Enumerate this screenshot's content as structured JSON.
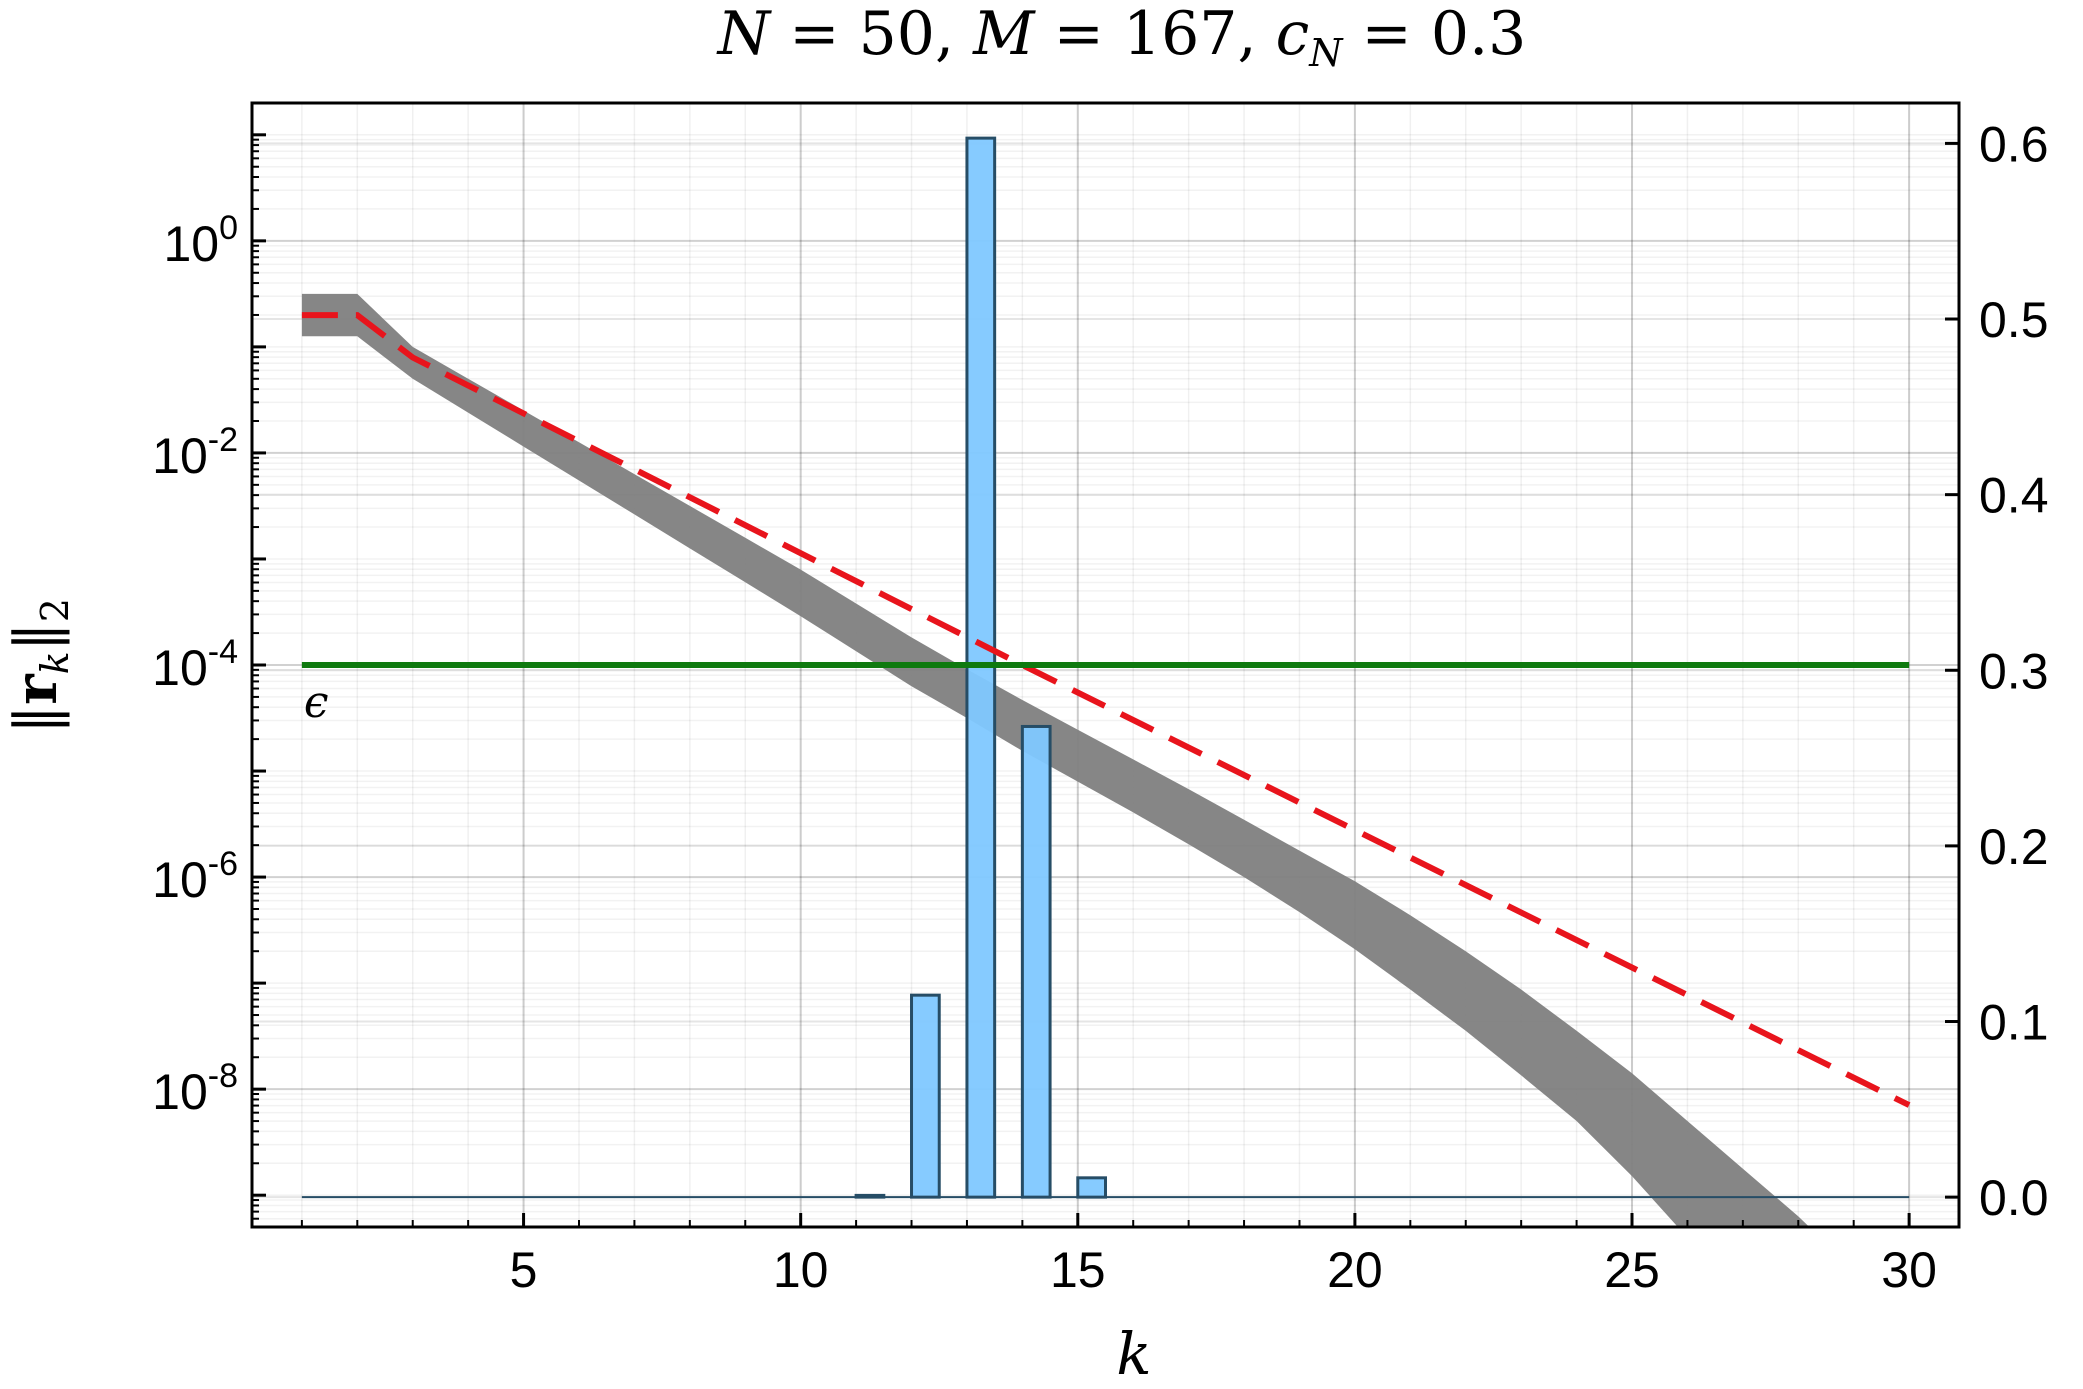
{
  "chart_data": {
    "type": "line+bar",
    "title": "N = 50, M = 167, c_N = 0.3",
    "title_parts": [
      "N",
      " = 50, ",
      "M",
      " = 167, ",
      "c",
      "N",
      " = 0.3"
    ],
    "xlabel": "k",
    "ylabel_left": "||r_k||_2",
    "ylabel_parts": [
      "‖",
      "r",
      "k",
      "‖",
      "2"
    ],
    "x_range": [
      0.1,
      30.9
    ],
    "x_ticks": [
      5,
      10,
      15,
      20,
      25,
      30
    ],
    "x_tick_labels": [
      "5",
      "10",
      "15",
      "20",
      "25",
      "30"
    ],
    "y_left_scale": "log",
    "y_left_range_exp": [
      -9.3,
      1.3
    ],
    "y_left_tick_exps": [
      0,
      -2,
      -4,
      -6,
      -8
    ],
    "y_left_tick_labels": [
      {
        "base": "10",
        "exp": "0"
      },
      {
        "base": "10",
        "exp": "-2"
      },
      {
        "base": "10",
        "exp": "-4"
      },
      {
        "base": "10",
        "exp": "-6"
      },
      {
        "base": "10",
        "exp": "-8"
      }
    ],
    "y_right_range": [
      -0.017,
      0.623
    ],
    "y_right_ticks": [
      0.0,
      0.1,
      0.2,
      0.3,
      0.4,
      0.5,
      0.6
    ],
    "y_right_tick_labels": [
      "0.0",
      "0.1",
      "0.2",
      "0.3",
      "0.4",
      "0.5",
      "0.6"
    ],
    "grid": true,
    "legend": "none",
    "epsilon_label": "ϵ",
    "epsilon_exp": -4,
    "band": {
      "color": "#7f7f7f",
      "k": [
        1,
        2,
        3,
        4,
        5,
        6,
        7,
        8,
        9,
        10,
        11,
        12,
        13,
        14,
        15,
        16,
        17,
        18,
        19,
        20,
        21,
        22,
        23,
        24,
        25,
        26,
        27,
        28,
        29,
        30
      ],
      "upper_exp": [
        -0.5,
        -0.5,
        -1.0,
        -1.3,
        -1.6,
        -1.9,
        -2.2,
        -2.5,
        -2.8,
        -3.1,
        -3.42,
        -3.74,
        -4.04,
        -4.33,
        -4.61,
        -4.89,
        -5.17,
        -5.46,
        -5.75,
        -6.04,
        -6.36,
        -6.7,
        -7.06,
        -7.45,
        -7.85,
        -8.3,
        -8.75,
        -9.2,
        -9.7,
        -10.2
      ],
      "lower_exp": [
        -0.9,
        -0.9,
        -1.3,
        -1.62,
        -1.94,
        -2.26,
        -2.58,
        -2.9,
        -3.22,
        -3.54,
        -3.87,
        -4.2,
        -4.5,
        -4.81,
        -5.1,
        -5.39,
        -5.69,
        -6.0,
        -6.33,
        -6.68,
        -7.06,
        -7.45,
        -7.87,
        -8.3,
        -8.82,
        -9.4,
        -9.9,
        -10.4,
        -10.9,
        -11.4
      ]
    },
    "series": [
      {
        "kind": "dashed-line",
        "color": "#e8141c",
        "k": [
          1,
          2,
          3,
          14,
          30
        ],
        "log10_values": [
          -0.7,
          -0.7,
          -1.1,
          -4.0,
          -8.15
        ]
      },
      {
        "kind": "horizontal-line",
        "color": "#0f7a0f",
        "log10_value": -4
      },
      {
        "kind": "bar",
        "axis": "right",
        "color": "#80c8ff",
        "edge": "#264d66",
        "categories": [
          11,
          12,
          13,
          14,
          15
        ],
        "values": [
          0.001,
          0.115,
          0.603,
          0.268,
          0.011
        ]
      }
    ]
  }
}
